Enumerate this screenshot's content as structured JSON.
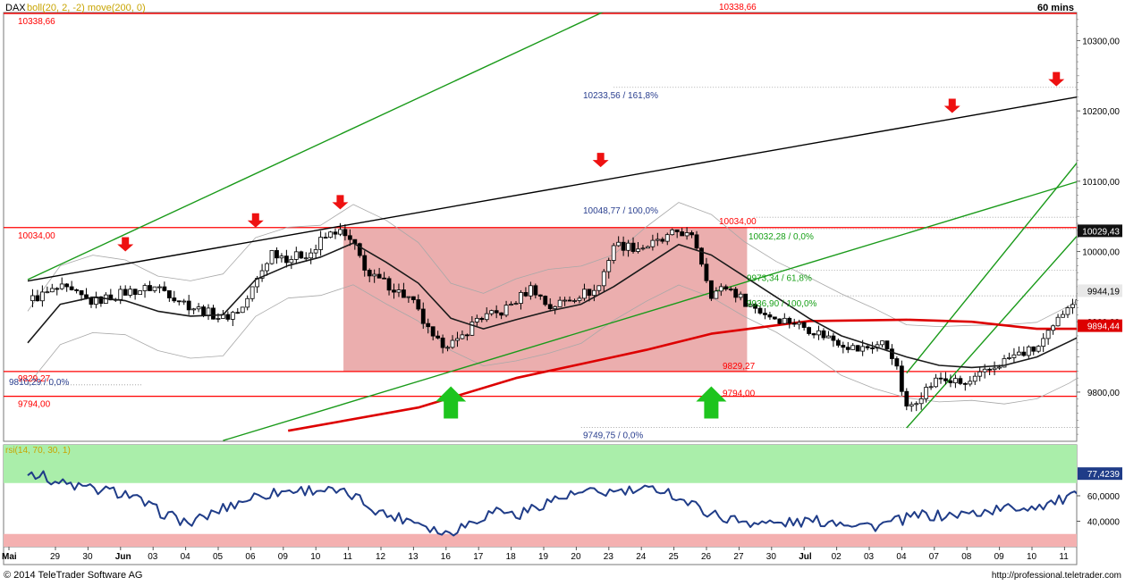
{
  "header": {
    "symbol": "DAX",
    "indicator": "boll(20, 2, -2) move(200, 0)",
    "interval": "60 mins"
  },
  "footer": {
    "copyright": "© 2014 TeleTrader Software AG",
    "url": "http://professional.teletrader.com"
  },
  "colors": {
    "support_resistance": "#ff0000",
    "trend_channel": "#1a9a1a",
    "resistance_line": "#000000",
    "projection": "#3a3fb8",
    "ma200": "#dd0000",
    "price_candles": "#000000",
    "box_fill": "#e8a0a0",
    "rsi_line": "#1f3c88",
    "rsi_overbought_zone": "#aaeeaa",
    "rsi_oversold_zone": "#f4b0b0",
    "arrow_up": "#1ec41e",
    "arrow_down": "#ee1111"
  },
  "chart_data": [
    {
      "type": "candlestick",
      "title": "DAX",
      "subtitle": "boll(20, 2, -2) move(200, 0)",
      "interval": "60 mins",
      "ylim": [
        9730,
        10340
      ],
      "y_ticks": [
        "9800,00",
        "9900,00",
        "10000,00",
        "10100,00",
        "10200,00",
        "10300,00"
      ],
      "x_tick_labels": [
        "Mai",
        "29",
        "30",
        "Jun",
        "03",
        "04",
        "05",
        "06",
        "09",
        "10",
        "11",
        "12",
        "13",
        "16",
        "17",
        "18",
        "19",
        "20",
        "23",
        "24",
        "25",
        "26",
        "27",
        "30",
        "Jul",
        "02",
        "03",
        "04",
        "07",
        "08",
        "09",
        "10",
        "11"
      ],
      "price_path": [
        [
          0,
          9930
        ],
        [
          1,
          9948
        ],
        [
          2,
          9928
        ],
        [
          3,
          9942
        ],
        [
          4,
          9950
        ],
        [
          5,
          9922
        ],
        [
          6,
          9905
        ],
        [
          6.6,
          9920
        ],
        [
          7.5,
          10000
        ],
        [
          8,
          9990
        ],
        [
          8.8,
          10000
        ],
        [
          9,
          10015
        ],
        [
          9.5,
          10031
        ],
        [
          10,
          10010
        ],
        [
          10.5,
          9965
        ],
        [
          11,
          9955
        ],
        [
          11.8,
          9930
        ],
        [
          12.5,
          9870
        ],
        [
          13.2,
          9870
        ],
        [
          13.8,
          9905
        ],
        [
          14.5,
          9912
        ],
        [
          15,
          9930
        ],
        [
          15.5,
          9950
        ],
        [
          16,
          9920
        ],
        [
          16.5,
          9930
        ],
        [
          17,
          9940
        ],
        [
          17.5,
          9945
        ],
        [
          18,
          10010
        ],
        [
          18.8,
          10005
        ],
        [
          19.5,
          10015
        ],
        [
          20,
          10030
        ],
        [
          20.5,
          10015
        ],
        [
          21,
          9940
        ],
        [
          21.5,
          9950
        ],
        [
          22,
          9930
        ],
        [
          22.5,
          9915
        ],
        [
          23,
          9905
        ],
        [
          23.5,
          9900
        ],
        [
          24,
          9890
        ],
        [
          24.5,
          9880
        ],
        [
          25.5,
          9860
        ],
        [
          26.3,
          9870
        ],
        [
          26.6,
          9850
        ],
        [
          27,
          9775
        ],
        [
          27.5,
          9800
        ],
        [
          28,
          9820
        ],
        [
          28.8,
          9810
        ],
        [
          29.5,
          9830
        ],
        [
          30.2,
          9850
        ],
        [
          31,
          9862
        ],
        [
          31.5,
          9890
        ],
        [
          32,
          9930
        ],
        [
          32.5,
          9925
        ],
        [
          33,
          9935
        ],
        [
          33.5,
          9945
        ],
        [
          34,
          9950
        ],
        [
          34.5,
          9970
        ],
        [
          35,
          9995
        ],
        [
          35.5,
          10018
        ],
        [
          36,
          10029
        ]
      ],
      "ma200": [
        [
          8,
          9745
        ],
        [
          12,
          9778
        ],
        [
          15,
          9820
        ],
        [
          18,
          9850
        ],
        [
          19,
          9860
        ],
        [
          21,
          9883
        ],
        [
          24,
          9901
        ],
        [
          27,
          9903
        ],
        [
          29,
          9900
        ],
        [
          31,
          9890
        ],
        [
          33,
          9890
        ],
        [
          35,
          9897
        ]
      ],
      "moving_average_20": [
        [
          0,
          9870
        ],
        [
          1,
          9925
        ],
        [
          2,
          9935
        ],
        [
          3,
          9930
        ],
        [
          4,
          9915
        ],
        [
          5,
          9908
        ],
        [
          6,
          9910
        ],
        [
          7,
          9960
        ],
        [
          8,
          9980
        ],
        [
          9,
          9992
        ],
        [
          10,
          10012
        ],
        [
          11,
          9985
        ],
        [
          12,
          9955
        ],
        [
          13,
          9905
        ],
        [
          14,
          9890
        ],
        [
          15,
          9903
        ],
        [
          16,
          9915
        ],
        [
          17,
          9925
        ],
        [
          18,
          9950
        ],
        [
          19,
          9980
        ],
        [
          20,
          10010
        ],
        [
          21,
          9995
        ],
        [
          22,
          9965
        ],
        [
          23,
          9935
        ],
        [
          24,
          9905
        ],
        [
          25,
          9880
        ],
        [
          26,
          9865
        ],
        [
          27,
          9850
        ],
        [
          28,
          9838
        ],
        [
          29,
          9835
        ],
        [
          30,
          9838
        ],
        [
          31,
          9850
        ],
        [
          32,
          9872
        ],
        [
          33,
          9895
        ],
        [
          34,
          9920
        ],
        [
          35,
          9944
        ]
      ],
      "horizontal_levels": [
        {
          "value": 10338.66,
          "label": "10338,66"
        },
        {
          "value": 10034.0,
          "label": "10034,00"
        },
        {
          "value": 9829.27,
          "label": "9829,27"
        },
        {
          "value": 9794.0,
          "label": "9794,00"
        }
      ],
      "fibonacci": [
        {
          "value": 10233.56,
          "label": "10233,56 / 161,8%"
        },
        {
          "value": 10048.77,
          "label": "10048,77 / 100,0%"
        },
        {
          "value": 10032.28,
          "label": "10032,28 / 0,0%"
        },
        {
          "value": 9973.34,
          "label": "9973,34 / 61,8%"
        },
        {
          "value": 9936.9,
          "label": "9936,90 / 100,0%"
        },
        {
          "value": 9829.27,
          "label": "9829,27"
        },
        {
          "value": 9810.29,
          "label": "9810,29 / 0,0%"
        },
        {
          "value": 9794.0,
          "label": "9794,00"
        },
        {
          "value": 9749.75,
          "label": "9749,75 / 0,0%"
        }
      ],
      "current_values": [
        {
          "label": "10029,43",
          "value": 10029.43
        },
        {
          "label": "9944,19",
          "value": 9944.19
        },
        {
          "label": "9894,44",
          "value": 9894.44
        }
      ],
      "consolidation_box": {
        "x0": 9.7,
        "x1": 22.1,
        "y0": 9829.27,
        "y1": 10034.0
      },
      "trend_channel_upper": [
        [
          0,
          9960
        ],
        [
          26,
          10520
        ]
      ],
      "trend_channel_lower": [
        [
          6,
          9731
        ],
        [
          33,
          10110
        ]
      ],
      "resistance_trend": [
        [
          0,
          9958
        ],
        [
          33,
          10226
        ]
      ],
      "short_channel_upper": [
        [
          27,
          9827
        ],
        [
          33,
          10170
        ]
      ],
      "short_channel_lower": [
        [
          27,
          9749
        ],
        [
          33,
          10062
        ]
      ],
      "projection": [
        [
          35.8,
          10020
        ],
        [
          36.3,
          10035
        ],
        [
          36.7,
          9980
        ],
        [
          37.5,
          10100
        ],
        [
          38,
          10040
        ],
        [
          39.5,
          10230
        ],
        [
          40,
          10155
        ],
        [
          41,
          10230
        ],
        [
          41.8,
          10058
        ],
        [
          42.2,
          10340
        ],
        [
          43,
          10340
        ]
      ],
      "down_arrows": [
        [
          3,
          10000
        ],
        [
          7,
          10034
        ],
        [
          9.6,
          10060
        ],
        [
          17.6,
          10120
        ],
        [
          28.4,
          10197
        ],
        [
          31.6,
          10235
        ],
        [
          32.4,
          10345
        ]
      ],
      "up_arrows": [
        [
          13,
          9770
        ],
        [
          21,
          9770
        ]
      ]
    },
    {
      "type": "line",
      "title": "rsi(14, 70, 30, 1)",
      "ylim": [
        20,
        100
      ],
      "y_ticks": [
        "40,0000",
        "60,0000"
      ],
      "overbought": 70,
      "oversold": 30,
      "current_label": "77,4239",
      "values": [
        [
          0,
          80
        ],
        [
          1,
          70
        ],
        [
          2,
          65
        ],
        [
          3,
          62
        ],
        [
          4,
          48
        ],
        [
          5,
          38
        ],
        [
          6,
          50
        ],
        [
          7,
          60
        ],
        [
          8,
          64
        ],
        [
          9,
          65
        ],
        [
          10,
          60
        ],
        [
          10.5,
          52
        ],
        [
          11,
          45
        ],
        [
          12,
          40
        ],
        [
          12.8,
          30
        ],
        [
          13.5,
          38
        ],
        [
          14.5,
          50
        ],
        [
          15,
          44
        ],
        [
          16,
          56
        ],
        [
          17,
          62
        ],
        [
          18,
          63
        ],
        [
          19,
          64
        ],
        [
          19.5,
          66
        ],
        [
          20,
          58
        ],
        [
          21,
          46
        ],
        [
          21.5,
          42
        ],
        [
          22,
          40
        ],
        [
          23,
          38
        ],
        [
          24,
          40
        ],
        [
          25,
          40
        ],
        [
          26,
          36
        ],
        [
          27,
          42
        ],
        [
          27.5,
          45
        ],
        [
          28,
          44
        ],
        [
          29,
          46
        ],
        [
          30,
          50
        ],
        [
          31,
          52
        ],
        [
          32,
          58
        ],
        [
          32.5,
          62
        ],
        [
          33,
          66
        ],
        [
          33.6,
          70
        ],
        [
          34,
          74
        ],
        [
          35,
          77.4
        ]
      ]
    }
  ]
}
